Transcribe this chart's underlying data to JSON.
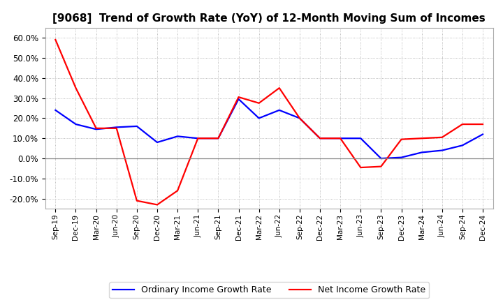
{
  "title": "[9068]  Trend of Growth Rate (YoY) of 12-Month Moving Sum of Incomes",
  "x_labels": [
    "Sep-19",
    "Dec-19",
    "Mar-20",
    "Jun-20",
    "Sep-20",
    "Dec-20",
    "Mar-21",
    "Jun-21",
    "Sep-21",
    "Dec-21",
    "Mar-22",
    "Jun-22",
    "Sep-22",
    "Dec-22",
    "Mar-23",
    "Jun-23",
    "Sep-23",
    "Dec-23",
    "Mar-24",
    "Jun-24",
    "Sep-24",
    "Dec-24"
  ],
  "ordinary_income": [
    24.0,
    17.0,
    14.5,
    15.5,
    16.0,
    8.0,
    11.0,
    10.0,
    10.0,
    29.5,
    20.0,
    24.0,
    20.0,
    10.0,
    10.0,
    10.0,
    0.0,
    0.5,
    3.0,
    4.0,
    6.5,
    12.0
  ],
  "net_income": [
    59.0,
    35.0,
    15.0,
    15.0,
    -21.0,
    -23.0,
    -16.0,
    10.0,
    10.0,
    30.5,
    27.5,
    35.0,
    20.0,
    10.0,
    10.0,
    -4.5,
    -4.0,
    9.5,
    10.0,
    10.5,
    17.0,
    17.0
  ],
  "ylim": [
    -25,
    65
  ],
  "yticks": [
    -20.0,
    -10.0,
    0.0,
    10.0,
    20.0,
    30.0,
    40.0,
    50.0,
    60.0
  ],
  "ordinary_color": "#0000FF",
  "net_color": "#FF0000",
  "background_color": "#FFFFFF",
  "plot_bg_color": "#FFFFFF",
  "grid_color": "#AAAAAA",
  "title_fontsize": 11,
  "legend_ordinary": "Ordinary Income Growth Rate",
  "legend_net": "Net Income Growth Rate"
}
